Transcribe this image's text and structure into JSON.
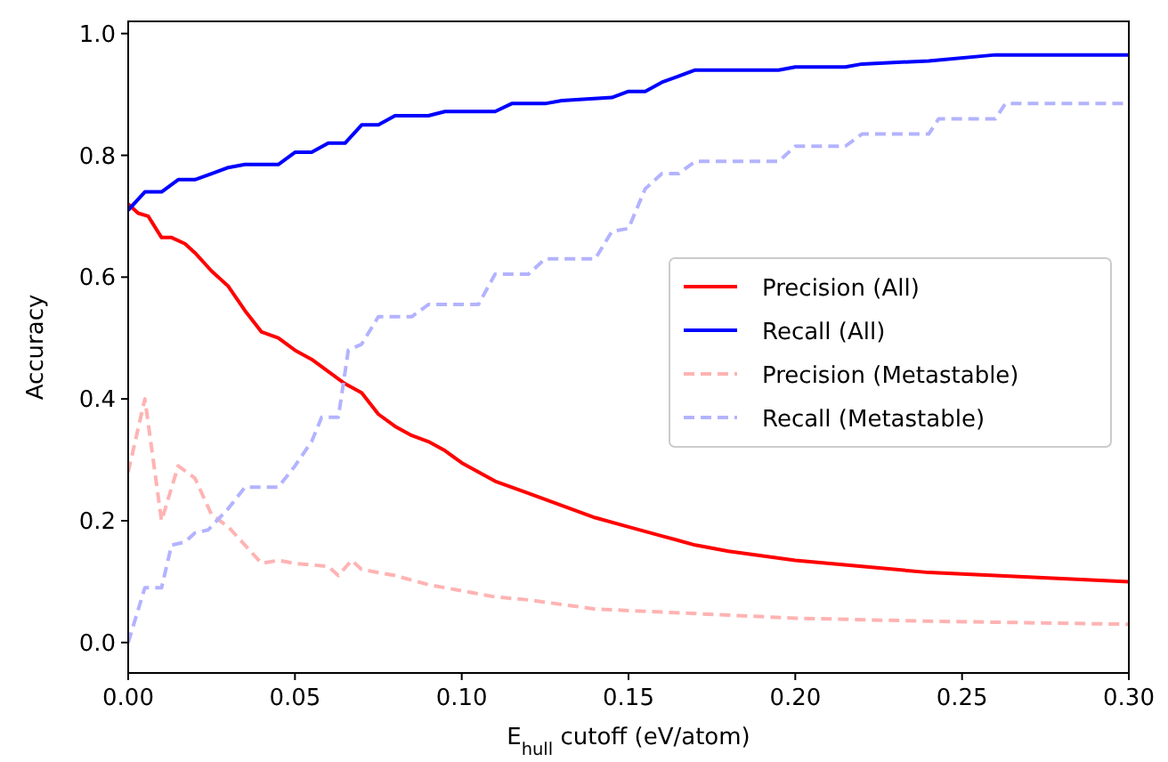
{
  "chart_data": {
    "type": "line",
    "xlabel": "E$_{hull}$ cutoff (eV/atom)",
    "ylabel": "Accuracy",
    "xlim": [
      0,
      0.3
    ],
    "ylim": [
      -0.05,
      1.02
    ],
    "xticks": [
      {
        "value": 0,
        "label": "0.00"
      },
      {
        "value": 0.05,
        "label": "0.05"
      },
      {
        "value": 0.1,
        "label": "0.10"
      },
      {
        "value": 0.15,
        "label": "0.15"
      },
      {
        "value": 0.2,
        "label": "0.20"
      },
      {
        "value": 0.25,
        "label": "0.25"
      },
      {
        "value": 0.3,
        "label": "0.30"
      }
    ],
    "yticks": [
      {
        "value": 0,
        "label": "0.0"
      },
      {
        "value": 0.2,
        "label": "0.2"
      },
      {
        "value": 0.4,
        "label": "0.4"
      },
      {
        "value": 0.6,
        "label": "0.6"
      },
      {
        "value": 0.8,
        "label": "0.8"
      },
      {
        "value": 1,
        "label": "1.0"
      }
    ],
    "legend": "right",
    "grid": false,
    "series": [
      {
        "name": "Precision (All)",
        "color": "#ff0000",
        "line_style": "solid",
        "x": [
          0,
          0.003,
          0.006,
          0.01,
          0.013,
          0.017,
          0.02,
          0.025,
          0.03,
          0.035,
          0.04,
          0.045,
          0.05,
          0.055,
          0.06,
          0.065,
          0.07,
          0.075,
          0.08,
          0.085,
          0.09,
          0.095,
          0.1,
          0.105,
          0.11,
          0.12,
          0.13,
          0.14,
          0.15,
          0.16,
          0.17,
          0.18,
          0.2,
          0.22,
          0.24,
          0.26,
          0.28,
          0.3
        ],
        "values": [
          0.72,
          0.705,
          0.7,
          0.665,
          0.665,
          0.655,
          0.64,
          0.61,
          0.585,
          0.545,
          0.51,
          0.5,
          0.48,
          0.465,
          0.445,
          0.425,
          0.41,
          0.375,
          0.355,
          0.34,
          0.33,
          0.315,
          0.295,
          0.28,
          0.265,
          0.245,
          0.225,
          0.205,
          0.19,
          0.175,
          0.16,
          0.15,
          0.135,
          0.125,
          0.115,
          0.11,
          0.105,
          0.1
        ]
      },
      {
        "name": "Recall (All)",
        "color": "#0000ff",
        "line_style": "solid",
        "x": [
          0,
          0.005,
          0.01,
          0.015,
          0.02,
          0.025,
          0.03,
          0.035,
          0.045,
          0.05,
          0.055,
          0.06,
          0.065,
          0.07,
          0.075,
          0.08,
          0.09,
          0.095,
          0.11,
          0.115,
          0.125,
          0.13,
          0.145,
          0.15,
          0.155,
          0.16,
          0.165,
          0.17,
          0.195,
          0.2,
          0.215,
          0.22,
          0.24,
          0.26,
          0.3
        ],
        "values": [
          0.71,
          0.74,
          0.74,
          0.76,
          0.76,
          0.77,
          0.78,
          0.785,
          0.785,
          0.805,
          0.805,
          0.82,
          0.82,
          0.85,
          0.85,
          0.865,
          0.865,
          0.872,
          0.872,
          0.885,
          0.885,
          0.89,
          0.895,
          0.905,
          0.905,
          0.92,
          0.93,
          0.94,
          0.94,
          0.945,
          0.945,
          0.95,
          0.955,
          0.965,
          0.965
        ]
      },
      {
        "name": "Precision (Metastable)",
        "color": "#ffb3b3",
        "line_style": "dashed",
        "x": [
          0,
          0.005,
          0.01,
          0.015,
          0.02,
          0.025,
          0.03,
          0.035,
          0.04,
          0.045,
          0.05,
          0.06,
          0.063,
          0.067,
          0.07,
          0.08,
          0.09,
          0.1,
          0.11,
          0.12,
          0.14,
          0.16,
          0.18,
          0.2,
          0.24,
          0.3
        ],
        "values": [
          0.28,
          0.4,
          0.2,
          0.29,
          0.27,
          0.21,
          0.19,
          0.16,
          0.13,
          0.135,
          0.13,
          0.125,
          0.11,
          0.135,
          0.12,
          0.11,
          0.095,
          0.085,
          0.075,
          0.07,
          0.055,
          0.05,
          0.045,
          0.04,
          0.035,
          0.03
        ]
      },
      {
        "name": "Recall (Metastable)",
        "color": "#b3b3ff",
        "line_style": "dashed",
        "x": [
          0,
          0.005,
          0.01,
          0.013,
          0.017,
          0.02,
          0.024,
          0.03,
          0.035,
          0.045,
          0.05,
          0.055,
          0.058,
          0.063,
          0.066,
          0.07,
          0.075,
          0.085,
          0.09,
          0.105,
          0.11,
          0.12,
          0.125,
          0.14,
          0.145,
          0.15,
          0.155,
          0.16,
          0.165,
          0.17,
          0.195,
          0.2,
          0.215,
          0.22,
          0.24,
          0.243,
          0.26,
          0.263,
          0.3
        ],
        "values": [
          0,
          0.09,
          0.09,
          0.16,
          0.165,
          0.18,
          0.185,
          0.22,
          0.255,
          0.255,
          0.29,
          0.33,
          0.37,
          0.37,
          0.48,
          0.49,
          0.535,
          0.535,
          0.555,
          0.555,
          0.605,
          0.605,
          0.63,
          0.63,
          0.675,
          0.68,
          0.745,
          0.77,
          0.77,
          0.79,
          0.79,
          0.815,
          0.815,
          0.835,
          0.835,
          0.86,
          0.86,
          0.885,
          0.885
        ]
      }
    ]
  }
}
